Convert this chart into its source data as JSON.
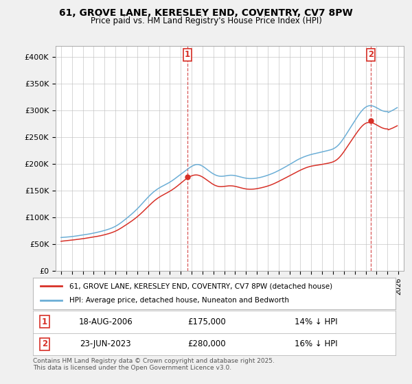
{
  "title": "61, GROVE LANE, KERESLEY END, COVENTRY, CV7 8PW",
  "subtitle": "Price paid vs. HM Land Registry's House Price Index (HPI)",
  "ylim": [
    0,
    420000
  ],
  "yticks": [
    0,
    50000,
    100000,
    150000,
    200000,
    250000,
    300000,
    350000,
    400000
  ],
  "ytick_labels": [
    "£0",
    "£50K",
    "£100K",
    "£150K",
    "£200K",
    "£250K",
    "£300K",
    "£350K",
    "£400K"
  ],
  "hpi_color": "#6baed6",
  "price_color": "#d73027",
  "marker_color": "#d73027",
  "sale1_price": 175000,
  "sale1_date": "18-AUG-2006",
  "sale1_label": "14% ↓ HPI",
  "sale1_x": 2006.63,
  "sale2_price": 280000,
  "sale2_date": "23-JUN-2023",
  "sale2_label": "16% ↓ HPI",
  "sale2_x": 2023.47,
  "legend_line1": "61, GROVE LANE, KERESLEY END, COVENTRY, CV7 8PW (detached house)",
  "legend_line2": "HPI: Average price, detached house, Nuneaton and Bedworth",
  "footer": "Contains HM Land Registry data © Crown copyright and database right 2025.\nThis data is licensed under the Open Government Licence v3.0.",
  "background_color": "#f0f0f0",
  "plot_bg_color": "#ffffff",
  "grid_color": "#c0c0c0",
  "hpi_kx": [
    1995.0,
    1996.0,
    1997.0,
    1998.0,
    1999.0,
    2000.0,
    2001.0,
    2002.0,
    2003.0,
    2003.5,
    2004.0,
    2004.5,
    2005.0,
    2005.5,
    2006.0,
    2006.5,
    2007.0,
    2007.5,
    2008.0,
    2008.5,
    2009.0,
    2009.5,
    2010.0,
    2010.5,
    2011.0,
    2011.5,
    2012.0,
    2012.5,
    2013.0,
    2013.5,
    2014.0,
    2014.5,
    2015.0,
    2015.5,
    2016.0,
    2016.5,
    2017.0,
    2017.5,
    2018.0,
    2018.5,
    2019.0,
    2019.5,
    2020.0,
    2020.5,
    2021.0,
    2021.5,
    2022.0,
    2022.5,
    2022.8,
    2023.0,
    2023.5,
    2024.0,
    2024.5,
    2025.0,
    2025.5,
    2025.9
  ],
  "hpi_ky": [
    62000,
    64000,
    67000,
    70000,
    75000,
    82000,
    97000,
    115000,
    138000,
    148000,
    155000,
    160000,
    165000,
    172000,
    180000,
    188000,
    196000,
    202000,
    197000,
    188000,
    180000,
    175000,
    176000,
    180000,
    178000,
    175000,
    172000,
    172000,
    173000,
    175000,
    178000,
    182000,
    187000,
    193000,
    198000,
    205000,
    210000,
    215000,
    218000,
    220000,
    222000,
    225000,
    226000,
    232000,
    248000,
    265000,
    280000,
    298000,
    305000,
    308000,
    312000,
    305000,
    298000,
    295000,
    300000,
    305000
  ],
  "price_kx": [
    1995.0,
    1996.0,
    1997.0,
    1998.0,
    1999.0,
    2000.0,
    2001.0,
    2002.0,
    2003.0,
    2003.5,
    2004.0,
    2004.5,
    2005.0,
    2005.5,
    2006.0,
    2006.63,
    2007.0,
    2007.5,
    2008.0,
    2008.5,
    2009.0,
    2009.5,
    2010.0,
    2010.5,
    2011.0,
    2011.5,
    2012.0,
    2012.5,
    2013.0,
    2013.5,
    2014.0,
    2014.5,
    2015.0,
    2015.5,
    2016.0,
    2016.5,
    2017.0,
    2017.5,
    2018.0,
    2018.5,
    2019.0,
    2019.5,
    2020.0,
    2020.5,
    2021.0,
    2021.5,
    2022.0,
    2022.5,
    2022.8,
    2023.0,
    2023.47,
    2023.8,
    2024.0,
    2024.5,
    2025.0,
    2025.5,
    2025.9
  ],
  "price_ky": [
    55000,
    57000,
    60000,
    63000,
    67000,
    73000,
    86000,
    100000,
    120000,
    130000,
    138000,
    143000,
    148000,
    155000,
    163000,
    175000,
    178000,
    182000,
    176000,
    168000,
    160000,
    155000,
    157000,
    160000,
    158000,
    155000,
    152000,
    152000,
    153000,
    155000,
    158000,
    162000,
    167000,
    172000,
    177000,
    183000,
    188000,
    193000,
    196000,
    197000,
    199000,
    201000,
    202000,
    207000,
    222000,
    238000,
    252000,
    268000,
    276000,
    278000,
    280000,
    276000,
    272000,
    266000,
    263000,
    267000,
    271000
  ]
}
